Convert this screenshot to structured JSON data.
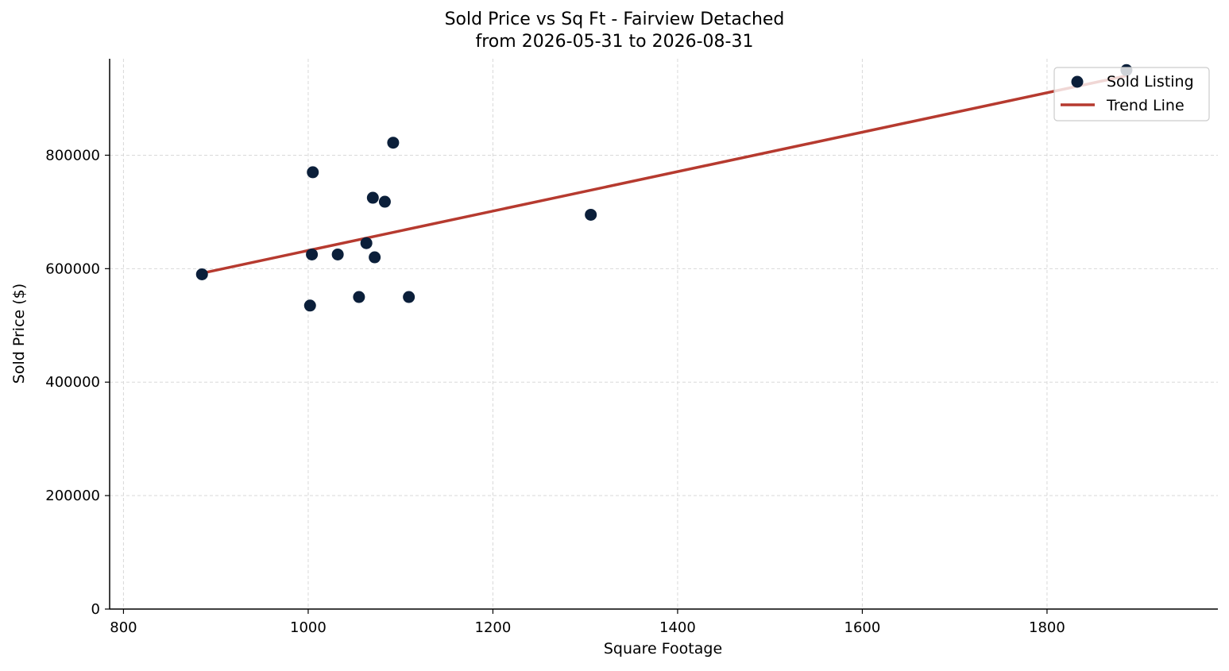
{
  "chart_data": {
    "type": "scatter",
    "title": "Sold Price vs Sq Ft - Fairview Detached",
    "subtitle": "from 2026-05-31 to 2026-08-31",
    "xlabel": "Square Footage",
    "ylabel": "Sold Price ($)",
    "xlim": [
      785,
      1985
    ],
    "ylim": [
      0,
      970000
    ],
    "xticks": [
      "800",
      "1000",
      "1200",
      "1400",
      "1600",
      "1800"
    ],
    "yticks": [
      "0",
      "200000",
      "400000",
      "600000",
      "800000"
    ],
    "grid": true,
    "legend_position": "top-right",
    "series": [
      {
        "name": "Sold Listing",
        "kind": "scatter",
        "color": "#0b1f3a",
        "x": [
          885,
          1002,
          1004,
          1005,
          1032,
          1055,
          1063,
          1070,
          1072,
          1083,
          1092,
          1109,
          1306,
          1886
        ],
        "y": [
          590000,
          535000,
          625000,
          770000,
          625000,
          550000,
          645000,
          725000,
          620000,
          718000,
          822000,
          550000,
          695000,
          950000
        ]
      },
      {
        "name": "Trend Line",
        "kind": "line",
        "color": "#b63a2f",
        "x": [
          885,
          1886
        ],
        "y": [
          592000,
          940000
        ]
      }
    ]
  }
}
